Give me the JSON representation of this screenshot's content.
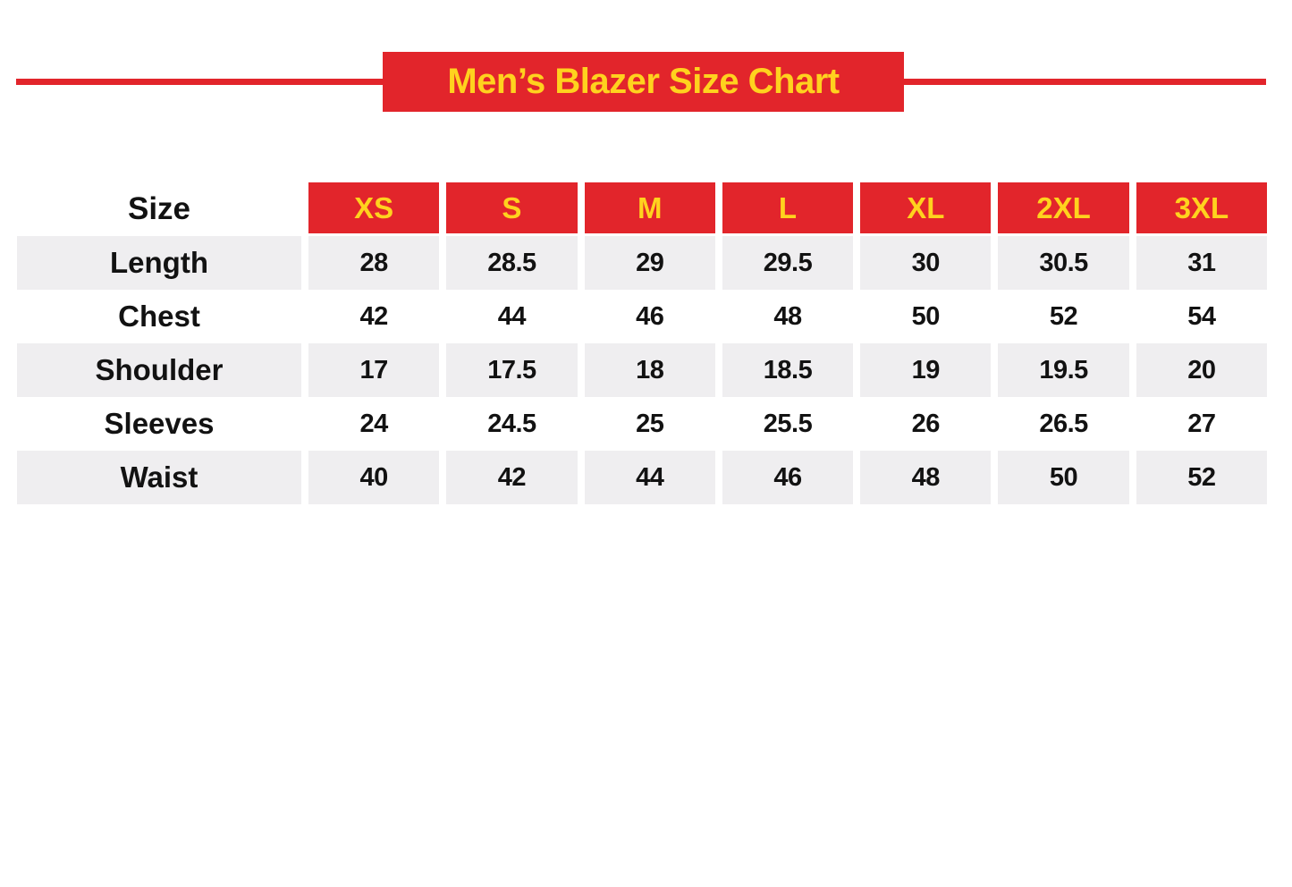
{
  "theme": {
    "red": "#e2252b",
    "yellow": "#ffd21e",
    "stripe": "#efeef0",
    "text": "#121212",
    "background": "#ffffff"
  },
  "banner": {
    "title_ref": "see chart_data.title"
  },
  "chart_data": {
    "type": "table",
    "title": "Men’s Blazer Size Chart",
    "columns": [
      "Size",
      "XS",
      "S",
      "M",
      "L",
      "XL",
      "2XL",
      "3XL"
    ],
    "rows": [
      [
        "Length",
        28,
        28.5,
        29,
        29.5,
        30,
        30.5,
        31
      ],
      [
        "Chest",
        42,
        44,
        46,
        48,
        50,
        52,
        54
      ],
      [
        "Shoulder",
        17,
        17.5,
        18,
        18.5,
        19,
        19.5,
        20
      ],
      [
        "Sleeves",
        24,
        24.5,
        25,
        25.5,
        26,
        26.5,
        27
      ],
      [
        "Waist",
        40,
        42,
        44,
        46,
        48,
        50,
        52
      ]
    ],
    "layout": {
      "header_style": "red boxes with yellow text",
      "striped_rows": [
        "Length",
        "Shoulder",
        "Waist"
      ],
      "label_column_header": "Size"
    }
  }
}
